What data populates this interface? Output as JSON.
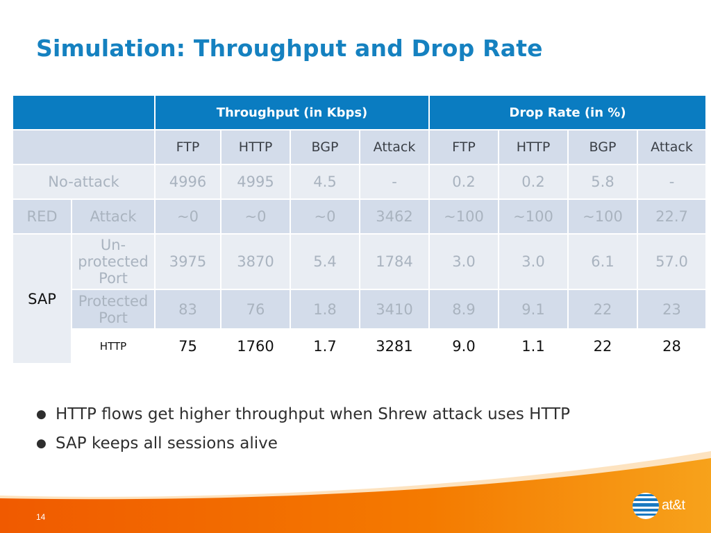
{
  "slide": {
    "title": "Simulation: Throughput and Drop Rate",
    "page_number": "14"
  },
  "table": {
    "group_headers": [
      "Throughput (in Kbps)",
      "Drop Rate (in %)"
    ],
    "sub_headers": [
      "FTP",
      "HTTP",
      "BGP",
      "Attack",
      "FTP",
      "HTTP",
      "BGP",
      "Attack"
    ],
    "rows": {
      "no_attack": {
        "label": "No-attack",
        "values": [
          "4996",
          "4995",
          "4.5",
          "-",
          "0.2",
          "0.2",
          "5.8",
          "-"
        ]
      },
      "red_attack": {
        "group": "RED",
        "label": "Attack",
        "values": [
          "~0",
          "~0",
          "~0",
          "3462",
          "~100",
          "~100",
          "~100",
          "22.7"
        ]
      },
      "sap_unprotected": {
        "group": "SAP",
        "label": "Un-protected Port",
        "values": [
          "3975",
          "3870",
          "5.4",
          "1784",
          "3.0",
          "3.0",
          "6.1",
          "57.0"
        ]
      },
      "sap_protected": {
        "label": "Protected Port",
        "values": [
          "83",
          "76",
          "1.8",
          "3410",
          "8.9",
          "9.1",
          "22",
          "23"
        ]
      },
      "sap_http": {
        "label": "HTTP",
        "values": [
          "75",
          "1760",
          "1.7",
          "3281",
          "9.0",
          "1.1",
          "22",
          "28"
        ]
      }
    }
  },
  "bullets": [
    "HTTP flows get higher throughput when Shrew attack uses HTTP",
    "SAP keeps all sessions alive"
  ],
  "logo": {
    "text": "at&t",
    "icon": "att-globe-icon"
  },
  "colors": {
    "title": "#1581c0",
    "header_blue": "#0a7cc1",
    "row_light": "#e9edf3",
    "row_dark": "#d3dcea",
    "footer_orange": "#f07f00"
  }
}
